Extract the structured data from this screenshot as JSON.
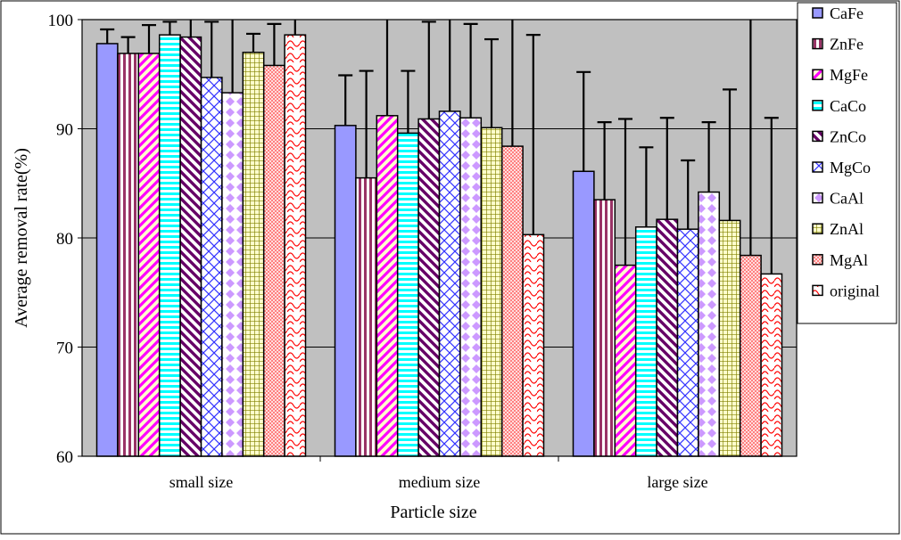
{
  "chart_data": {
    "type": "bar",
    "title": "",
    "xlabel": "Particle size",
    "ylabel": "Average removal rate(%)",
    "ylim": [
      60,
      100
    ],
    "yticks": [
      60,
      70,
      80,
      90,
      100
    ],
    "grid": true,
    "legend_position": "top-right",
    "categories": [
      "small size",
      "medium size",
      "large size"
    ],
    "series": [
      {
        "name": "CaFe",
        "pattern": "solid",
        "color": "#9999ff",
        "values": [
          97.8,
          90.3,
          86.1
        ],
        "err_upper": [
          99.1,
          94.9,
          95.2
        ]
      },
      {
        "name": "ZnFe",
        "pattern": "vstripe",
        "color": "#993366",
        "values": [
          96.9,
          85.5,
          83.5
        ],
        "err_upper": [
          98.4,
          95.3,
          90.6
        ]
      },
      {
        "name": "MgFe",
        "pattern": "diag",
        "color": "#ff00ff",
        "values": [
          96.9,
          91.2,
          77.5
        ],
        "err_upper": [
          99.5,
          100.2,
          90.9
        ]
      },
      {
        "name": "CaCo",
        "pattern": "hstripe",
        "color": "#00ffff",
        "values": [
          98.6,
          89.6,
          81.0
        ],
        "err_upper": [
          99.8,
          95.3,
          88.3
        ]
      },
      {
        "name": "ZnCo",
        "pattern": "diag-dark",
        "color": "#660066",
        "values": [
          98.4,
          90.9,
          81.7
        ],
        "err_upper": [
          100.1,
          99.8,
          91.0
        ]
      },
      {
        "name": "MgCo",
        "pattern": "cross",
        "color": "#0000ff",
        "values": [
          94.7,
          91.6,
          80.8
        ],
        "err_upper": [
          99.8,
          100.5,
          87.1
        ]
      },
      {
        "name": "CaAl",
        "pattern": "diamond",
        "color": "#cc99ff",
        "values": [
          93.3,
          91.0,
          84.2
        ],
        "err_upper": [
          100.3,
          99.6,
          90.6
        ]
      },
      {
        "name": "ZnAl",
        "pattern": "grid",
        "color": "#808000",
        "values": [
          97.0,
          90.1,
          81.6
        ],
        "err_upper": [
          98.7,
          98.2,
          93.6
        ]
      },
      {
        "name": "MgAl",
        "pattern": "check",
        "color": "#ff8080",
        "values": [
          95.8,
          88.4,
          78.4
        ],
        "err_upper": [
          99.6,
          100.5,
          100.5
        ]
      },
      {
        "name": "original",
        "pattern": "scallop",
        "color": "#ff0000",
        "values": [
          98.6,
          80.3,
          76.7
        ],
        "err_upper": [
          100.5,
          98.6,
          91.0
        ]
      }
    ]
  }
}
